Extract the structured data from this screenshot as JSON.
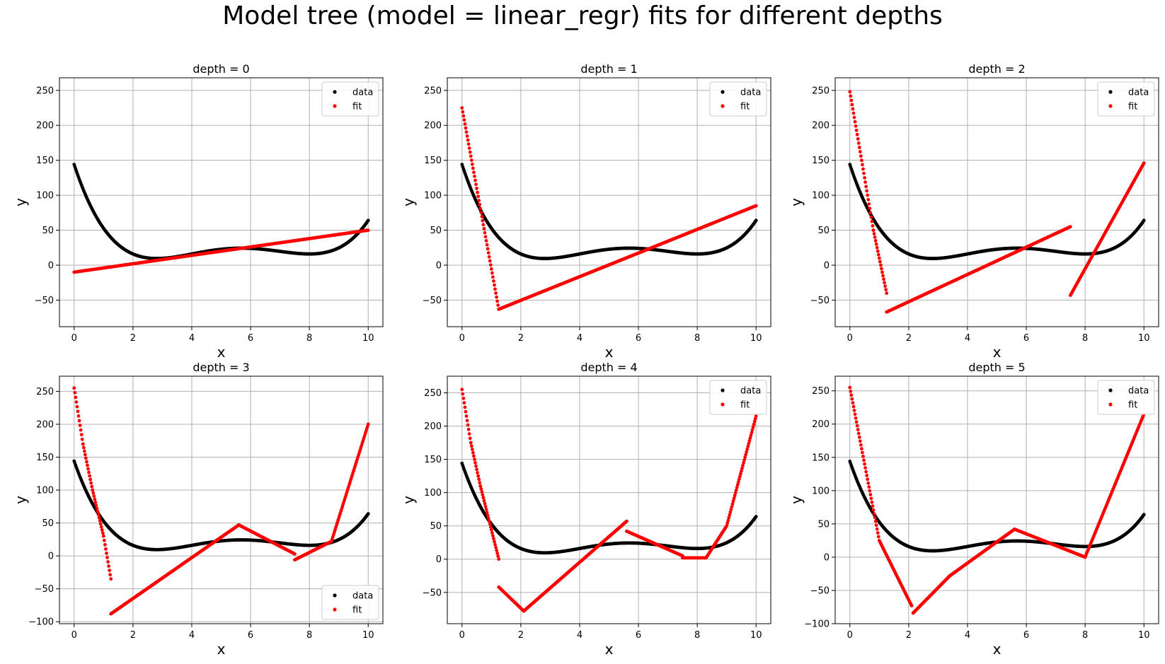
{
  "figure": {
    "title": "Model tree (model = linear_regr) fits for different depths"
  },
  "chart_data": [
    {
      "type": "scatter",
      "title": "depth = 0",
      "xlabel": "x",
      "ylabel": "y",
      "xlim": [
        -0.5,
        10.5
      ],
      "ylim": [
        -88,
        268
      ],
      "xticks": [
        0,
        2,
        4,
        6,
        8,
        10
      ],
      "yticks": [
        -50,
        0,
        50,
        100,
        150,
        200,
        250
      ],
      "grid": true,
      "legend": {
        "position": "top-right",
        "entries": [
          "data",
          "fit"
        ]
      },
      "series": [
        {
          "name": "data",
          "color": "#000000",
          "function": "(x-2)*(x-4)*(x-8)^2/4 + 16, sampled on [0,10]"
        },
        {
          "name": "fit",
          "color": "#ff0000",
          "segments": [
            {
              "x": [
                0,
                10
              ],
              "y": [
                -10,
                50
              ]
            }
          ]
        }
      ]
    },
    {
      "type": "scatter",
      "title": "depth = 1",
      "xlabel": "x",
      "ylabel": "y",
      "xlim": [
        -0.5,
        10.5
      ],
      "ylim": [
        -88,
        268
      ],
      "xticks": [
        0,
        2,
        4,
        6,
        8,
        10
      ],
      "yticks": [
        -50,
        0,
        50,
        100,
        150,
        200,
        250
      ],
      "grid": true,
      "legend": {
        "position": "top-right",
        "entries": [
          "data",
          "fit"
        ]
      },
      "series": [
        {
          "name": "data",
          "color": "#000000",
          "function": "(x-2)*(x-4)*(x-8)^2/4 + 16, sampled on [0,10]"
        },
        {
          "name": "fit",
          "color": "#ff0000",
          "segments": [
            {
              "x": [
                0,
                1.25
              ],
              "y": [
                225,
                -63
              ]
            },
            {
              "x": [
                1.25,
                10
              ],
              "y": [
                -63,
                85
              ]
            }
          ]
        }
      ]
    },
    {
      "type": "scatter",
      "title": "depth = 2",
      "xlabel": "x",
      "ylabel": "y",
      "xlim": [
        -0.5,
        10.5
      ],
      "ylim": [
        -88,
        268
      ],
      "xticks": [
        0,
        2,
        4,
        6,
        8,
        10
      ],
      "yticks": [
        -50,
        0,
        50,
        100,
        150,
        200,
        250
      ],
      "grid": true,
      "legend": {
        "position": "top-right",
        "entries": [
          "data",
          "fit"
        ]
      },
      "series": [
        {
          "name": "data",
          "color": "#000000",
          "function": "(x-2)*(x-4)*(x-8)^2/4 + 16, sampled on [0,10]"
        },
        {
          "name": "fit",
          "color": "#ff0000",
          "segments": [
            {
              "x": [
                0,
                0.4,
                0.8,
                1.25
              ],
              "y": [
                248,
                150,
                50,
                -40
              ]
            },
            {
              "x": [
                1.25,
                7.5
              ],
              "y": [
                -67,
                55
              ]
            },
            {
              "x": [
                7.5,
                10
              ],
              "y": [
                -43,
                146
              ]
            }
          ]
        }
      ]
    },
    {
      "type": "scatter",
      "title": "depth = 3",
      "xlabel": "x",
      "ylabel": "y",
      "xlim": [
        -0.5,
        10.5
      ],
      "ylim": [
        -103,
        273
      ],
      "xticks": [
        0,
        2,
        4,
        6,
        8,
        10
      ],
      "yticks": [
        -100,
        -50,
        0,
        50,
        100,
        150,
        200,
        250
      ],
      "grid": true,
      "legend": {
        "position": "bottom-right",
        "entries": [
          "data",
          "fit"
        ]
      },
      "series": [
        {
          "name": "data",
          "color": "#000000",
          "function": "(x-2)*(x-4)*(x-8)^2/4 + 16, sampled on [0,10]"
        },
        {
          "name": "fit",
          "color": "#ff0000",
          "segments": [
            {
              "x": [
                0,
                0.3,
                0.625
              ],
              "y": [
                255,
                170,
                100
              ]
            },
            {
              "x": [
                0.625,
                1.0,
                1.25
              ],
              "y": [
                100,
                30,
                -35
              ]
            },
            {
              "x": [
                1.25,
                5.6
              ],
              "y": [
                -88,
                47
              ]
            },
            {
              "x": [
                5.6,
                7.5
              ],
              "y": [
                47,
                3
              ]
            },
            {
              "x": [
                7.5,
                8.75
              ],
              "y": [
                -6,
                22
              ]
            },
            {
              "x": [
                8.75,
                10
              ],
              "y": [
                22,
                200
              ]
            }
          ]
        }
      ]
    },
    {
      "type": "scatter",
      "title": "depth = 4",
      "xlabel": "x",
      "ylabel": "y",
      "xlim": [
        -0.5,
        10.5
      ],
      "ylim": [
        -97,
        275
      ],
      "xticks": [
        0,
        2,
        4,
        6,
        8,
        10
      ],
      "yticks": [
        -50,
        0,
        50,
        100,
        150,
        200,
        250
      ],
      "grid": true,
      "legend": {
        "position": "top-right",
        "entries": [
          "data",
          "fit"
        ]
      },
      "series": [
        {
          "name": "data",
          "color": "#000000",
          "function": "(x-2)*(x-4)*(x-8)^2/4 + 16, sampled on [0,10]"
        },
        {
          "name": "fit",
          "color": "#ff0000",
          "segments": [
            {
              "x": [
                0,
                0.3,
                0.625
              ],
              "y": [
                255,
                175,
                110
              ]
            },
            {
              "x": [
                0.625,
                1.25
              ],
              "y": [
                110,
                0
              ]
            },
            {
              "x": [
                1.25,
                2.1
              ],
              "y": [
                -42,
                -78
              ]
            },
            {
              "x": [
                2.1,
                5.6
              ],
              "y": [
                -78,
                57
              ]
            },
            {
              "x": [
                5.6,
                7.5
              ],
              "y": [
                42,
                5
              ]
            },
            {
              "x": [
                7.5,
                8.3
              ],
              "y": [
                2,
                2
              ]
            },
            {
              "x": [
                8.3,
                9.0,
                10
              ],
              "y": [
                2,
                50,
                215
              ]
            }
          ]
        }
      ]
    },
    {
      "type": "scatter",
      "title": "depth = 5",
      "xlabel": "x",
      "ylabel": "y",
      "xlim": [
        -0.5,
        10.5
      ],
      "ylim": [
        -100,
        272
      ],
      "xticks": [
        0,
        2,
        4,
        6,
        8,
        10
      ],
      "yticks": [
        -100,
        -50,
        0,
        50,
        100,
        150,
        200,
        250
      ],
      "grid": true,
      "legend": {
        "position": "top-right",
        "entries": [
          "data",
          "fit"
        ]
      },
      "series": [
        {
          "name": "data",
          "color": "#000000",
          "function": "(x-2)*(x-4)*(x-8)^2/4 + 16, sampled on [0,10]"
        },
        {
          "name": "fit",
          "color": "#ff0000",
          "segments": [
            {
              "x": [
                0,
                1.0,
                2.1
              ],
              "y": [
                255,
                25,
                -73
              ]
            },
            {
              "x": [
                2.15,
                3.4
              ],
              "y": [
                -84,
                -28
              ]
            },
            {
              "x": [
                3.4,
                5.6,
                8,
                10
              ],
              "y": [
                -28,
                42,
                0,
                215
              ]
            }
          ]
        }
      ]
    }
  ]
}
